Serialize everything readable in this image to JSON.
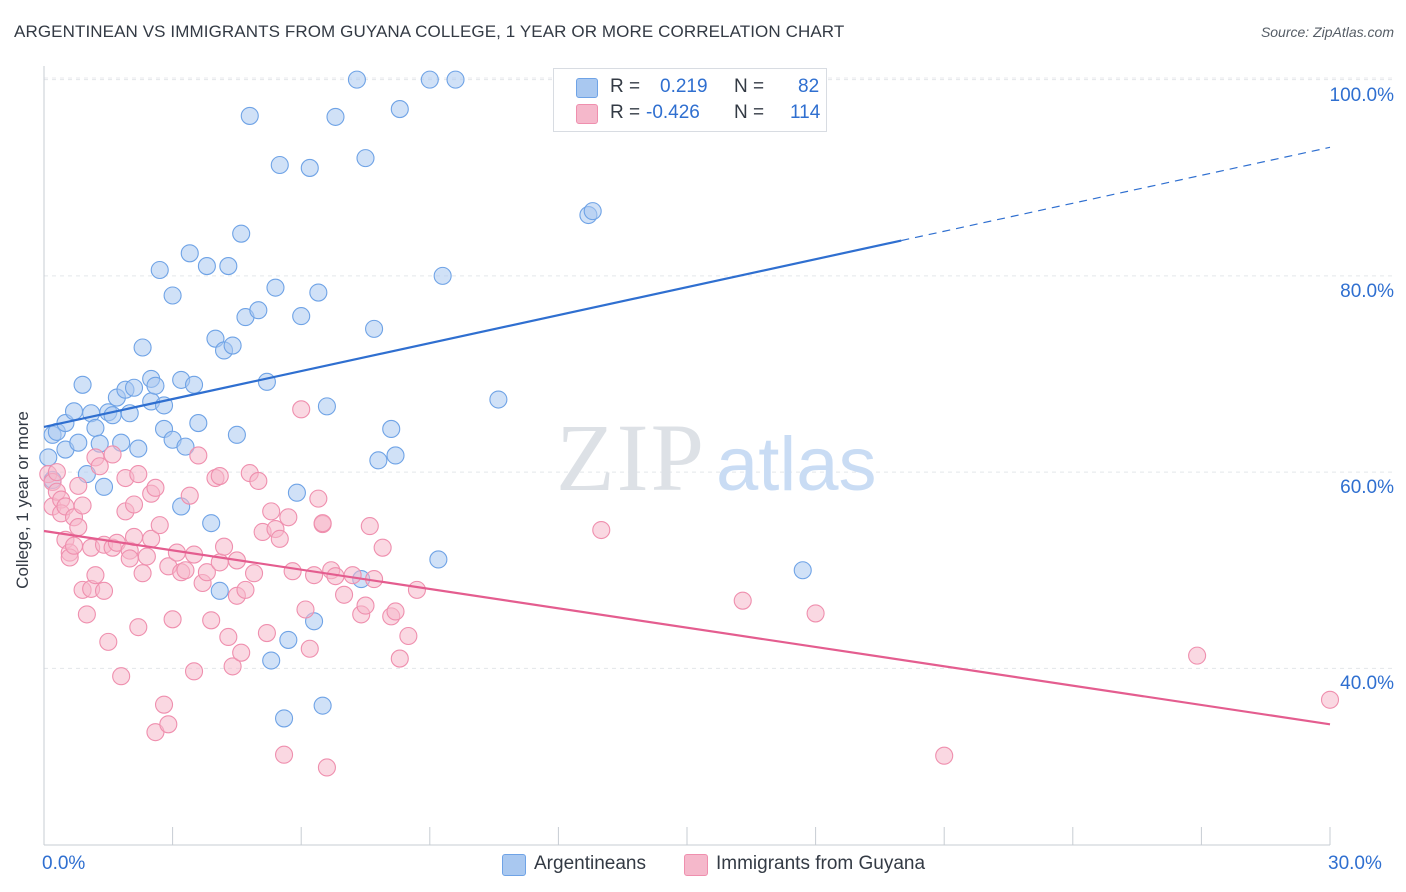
{
  "title": "ARGENTINEAN VS IMMIGRANTS FROM GUYANA COLLEGE, 1 YEAR OR MORE CORRELATION CHART",
  "source": "Source: ZipAtlas.com",
  "watermark": {
    "zip": "ZIP",
    "atlas": "atlas"
  },
  "legend": {
    "rows": [
      {
        "r_label": "R =",
        "r_value": "0.219",
        "n_label": "N =",
        "n_value": "82",
        "color": "#a9c8f0"
      },
      {
        "r_label": "R =",
        "r_value": "-0.426",
        "n_label": "N =",
        "n_value": "114",
        "color": "#f5b8cb"
      }
    ]
  },
  "bottom_legend": [
    {
      "label": "Argentineans",
      "color": "#a9c8f0"
    },
    {
      "label": "Immigrants from Guyana",
      "color": "#f5b8cb"
    }
  ],
  "chart_data": {
    "type": "scatter",
    "title": "ARGENTINEAN VS IMMIGRANTS FROM GUYANA COLLEGE, 1 YEAR OR MORE CORRELATION CHART",
    "xlabel": "",
    "ylabel": "College, 1 year or more",
    "xlim": [
      0,
      30
    ],
    "ylim": [
      22,
      102
    ],
    "x_tick_labels": [
      {
        "value": 0,
        "label": "0.0%"
      },
      {
        "value": 30,
        "label": "30.0%"
      }
    ],
    "y_tick_labels": [
      {
        "value": 40,
        "label": "40.0%"
      },
      {
        "value": 60,
        "label": "60.0%"
      },
      {
        "value": 80,
        "label": "80.0%"
      },
      {
        "value": 100,
        "label": "100.0%"
      }
    ],
    "grid": true,
    "legend_position": "top-center",
    "series": [
      {
        "name": "Argentineans",
        "color": "#6fa3e6",
        "fill": "#a9c8f0",
        "trend": {
          "x": [
            0,
            20,
            30
          ],
          "y": [
            64.6,
            83.6,
            93.1
          ],
          "solid_until": 20,
          "color": "#2f6fd0"
        },
        "points": [
          [
            0.1,
            61.5
          ],
          [
            0.2,
            63.8
          ],
          [
            0.2,
            59.2
          ],
          [
            0.3,
            64.1
          ],
          [
            0.5,
            65.0
          ],
          [
            0.5,
            62.3
          ],
          [
            0.7,
            66.2
          ],
          [
            0.8,
            63.0
          ],
          [
            0.9,
            68.9
          ],
          [
            1.0,
            59.8
          ],
          [
            1.1,
            66.0
          ],
          [
            1.2,
            64.5
          ],
          [
            1.3,
            62.9
          ],
          [
            1.4,
            58.5
          ],
          [
            1.5,
            66.1
          ],
          [
            1.6,
            65.8
          ],
          [
            1.7,
            67.6
          ],
          [
            1.8,
            63.0
          ],
          [
            1.9,
            68.4
          ],
          [
            2.0,
            66.0
          ],
          [
            2.1,
            68.6
          ],
          [
            2.2,
            62.4
          ],
          [
            2.3,
            72.7
          ],
          [
            2.5,
            67.2
          ],
          [
            2.5,
            69.5
          ],
          [
            2.6,
            68.8
          ],
          [
            2.7,
            80.6
          ],
          [
            2.8,
            66.8
          ],
          [
            2.8,
            64.4
          ],
          [
            3.0,
            63.3
          ],
          [
            3.0,
            78.0
          ],
          [
            3.2,
            56.5
          ],
          [
            3.2,
            69.4
          ],
          [
            3.3,
            62.6
          ],
          [
            3.4,
            82.3
          ],
          [
            3.5,
            68.9
          ],
          [
            3.6,
            65.0
          ],
          [
            3.8,
            81.0
          ],
          [
            3.9,
            54.8
          ],
          [
            4.0,
            73.6
          ],
          [
            4.1,
            47.9
          ],
          [
            4.2,
            72.4
          ],
          [
            4.3,
            81.0
          ],
          [
            4.4,
            72.9
          ],
          [
            4.5,
            63.8
          ],
          [
            4.6,
            84.3
          ],
          [
            4.7,
            75.8
          ],
          [
            4.8,
            96.3
          ],
          [
            5.0,
            76.5
          ],
          [
            5.2,
            69.2
          ],
          [
            5.3,
            40.8
          ],
          [
            5.4,
            78.8
          ],
          [
            5.5,
            91.3
          ],
          [
            5.6,
            34.9
          ],
          [
            5.7,
            42.9
          ],
          [
            5.9,
            57.9
          ],
          [
            6.0,
            75.9
          ],
          [
            6.2,
            91.0
          ],
          [
            6.3,
            44.8
          ],
          [
            6.4,
            78.3
          ],
          [
            6.5,
            36.2
          ],
          [
            6.6,
            66.7
          ],
          [
            6.8,
            96.2
          ],
          [
            7.3,
            100.0
          ],
          [
            7.4,
            49.1
          ],
          [
            7.5,
            92.0
          ],
          [
            7.7,
            74.6
          ],
          [
            7.8,
            61.2
          ],
          [
            8.1,
            64.4
          ],
          [
            8.2,
            61.7
          ],
          [
            8.3,
            97.0
          ],
          [
            9.0,
            100.0
          ],
          [
            9.2,
            51.1
          ],
          [
            9.3,
            80.0
          ],
          [
            9.6,
            100.0
          ],
          [
            10.6,
            67.4
          ],
          [
            12.7,
            86.2
          ],
          [
            12.8,
            86.6
          ],
          [
            17.7,
            50.0
          ]
        ]
      },
      {
        "name": "Immigrants from Guyana",
        "color": "#ef8fae",
        "fill": "#f5b8cb",
        "trend": {
          "x": [
            0,
            30
          ],
          "y": [
            54.0,
            34.3
          ],
          "solid_until": 30,
          "color": "#e45d8f"
        },
        "points": [
          [
            0.1,
            59.8
          ],
          [
            0.2,
            56.5
          ],
          [
            0.2,
            59.0
          ],
          [
            0.3,
            58.0
          ],
          [
            0.3,
            60.0
          ],
          [
            0.4,
            57.2
          ],
          [
            0.4,
            55.8
          ],
          [
            0.5,
            53.1
          ],
          [
            0.5,
            56.5
          ],
          [
            0.6,
            51.8
          ],
          [
            0.6,
            51.3
          ],
          [
            0.7,
            52.5
          ],
          [
            0.7,
            55.4
          ],
          [
            0.8,
            54.4
          ],
          [
            0.8,
            58.6
          ],
          [
            0.9,
            56.6
          ],
          [
            0.9,
            48.0
          ],
          [
            1.0,
            45.5
          ],
          [
            1.1,
            52.3
          ],
          [
            1.1,
            48.1
          ],
          [
            1.2,
            49.5
          ],
          [
            1.2,
            61.5
          ],
          [
            1.3,
            60.6
          ],
          [
            1.4,
            52.6
          ],
          [
            1.4,
            47.9
          ],
          [
            1.5,
            42.7
          ],
          [
            1.6,
            52.3
          ],
          [
            1.6,
            61.8
          ],
          [
            1.7,
            52.8
          ],
          [
            1.8,
            39.2
          ],
          [
            1.9,
            56.0
          ],
          [
            1.9,
            59.4
          ],
          [
            2.0,
            52.0
          ],
          [
            2.0,
            51.2
          ],
          [
            2.1,
            56.7
          ],
          [
            2.1,
            53.4
          ],
          [
            2.2,
            59.8
          ],
          [
            2.2,
            44.2
          ],
          [
            2.3,
            49.7
          ],
          [
            2.4,
            51.4
          ],
          [
            2.5,
            53.2
          ],
          [
            2.5,
            57.8
          ],
          [
            2.6,
            33.5
          ],
          [
            2.6,
            58.4
          ],
          [
            2.7,
            54.6
          ],
          [
            2.8,
            36.3
          ],
          [
            2.9,
            50.4
          ],
          [
            2.9,
            34.3
          ],
          [
            3.0,
            45.0
          ],
          [
            3.1,
            51.8
          ],
          [
            3.2,
            49.8
          ],
          [
            3.3,
            50.0
          ],
          [
            3.4,
            57.6
          ],
          [
            3.5,
            39.7
          ],
          [
            3.5,
            51.6
          ],
          [
            3.6,
            61.7
          ],
          [
            3.7,
            48.7
          ],
          [
            3.8,
            49.8
          ],
          [
            3.9,
            44.9
          ],
          [
            4.0,
            59.4
          ],
          [
            4.1,
            59.6
          ],
          [
            4.1,
            50.8
          ],
          [
            4.2,
            52.4
          ],
          [
            4.3,
            43.2
          ],
          [
            4.4,
            40.2
          ],
          [
            4.5,
            47.4
          ],
          [
            4.5,
            51.0
          ],
          [
            4.6,
            41.6
          ],
          [
            4.7,
            48.0
          ],
          [
            4.8,
            59.9
          ],
          [
            4.9,
            49.7
          ],
          [
            5.0,
            59.1
          ],
          [
            5.1,
            53.9
          ],
          [
            5.2,
            43.6
          ],
          [
            5.3,
            56.0
          ],
          [
            5.4,
            54.2
          ],
          [
            5.5,
            53.2
          ],
          [
            5.6,
            31.2
          ],
          [
            5.7,
            55.4
          ],
          [
            5.8,
            49.9
          ],
          [
            6.0,
            66.4
          ],
          [
            6.1,
            46.0
          ],
          [
            6.2,
            42.0
          ],
          [
            6.3,
            49.5
          ],
          [
            6.4,
            57.3
          ],
          [
            6.5,
            54.7
          ],
          [
            6.5,
            54.8
          ],
          [
            6.6,
            29.9
          ],
          [
            6.7,
            50.0
          ],
          [
            6.8,
            49.4
          ],
          [
            7.0,
            47.5
          ],
          [
            7.2,
            49.5
          ],
          [
            7.4,
            45.5
          ],
          [
            7.5,
            46.4
          ],
          [
            7.6,
            54.5
          ],
          [
            7.7,
            49.1
          ],
          [
            7.9,
            52.3
          ],
          [
            8.1,
            45.3
          ],
          [
            8.2,
            45.8
          ],
          [
            8.3,
            41.0
          ],
          [
            8.5,
            43.3
          ],
          [
            8.7,
            48.0
          ],
          [
            13.0,
            54.1
          ],
          [
            16.3,
            46.9
          ],
          [
            18.0,
            45.6
          ],
          [
            21.0,
            31.1
          ],
          [
            26.9,
            41.3
          ],
          [
            30.0,
            36.8
          ]
        ]
      }
    ]
  }
}
